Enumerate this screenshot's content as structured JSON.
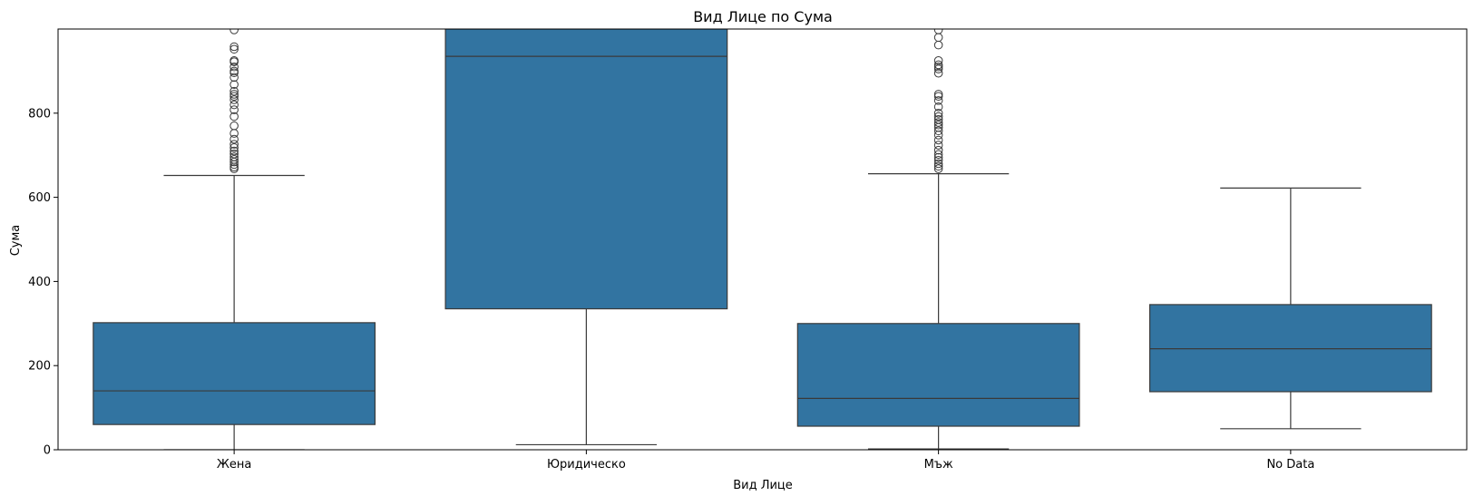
{
  "chart_data": {
    "type": "boxplot",
    "title": "Вид Лице по Сума",
    "xlabel": "Вид Лице",
    "ylabel": "Сума",
    "ylim": [
      0,
      1000
    ],
    "yticks": [
      0,
      200,
      400,
      600,
      800
    ],
    "grid": false,
    "box_color": "#3274a1",
    "line_color": "#3a3a3a",
    "categories": [
      "Жена",
      "Юридическо",
      "Мъж",
      "No Data"
    ],
    "boxes": [
      {
        "category": "Жена",
        "whisker_low": 0,
        "q1": 60,
        "median": 140,
        "q3": 302,
        "whisker_high": 652,
        "outliers": [
          668,
          672,
          678,
          684,
          690,
          696,
          703,
          710,
          718,
          726,
          738,
          752,
          770,
          792,
          808,
          820,
          832,
          840,
          845,
          852,
          868,
          885,
          896,
          900,
          910,
          922,
          925,
          952,
          958,
          998
        ]
      },
      {
        "category": "Юридическо",
        "whisker_low": 12,
        "q1": 335,
        "median": 935,
        "q3": 1000,
        "whisker_high": 1000,
        "outliers": []
      },
      {
        "category": "Мъж",
        "whisker_low": 2,
        "q1": 56,
        "median": 122,
        "q3": 300,
        "whisker_high": 656,
        "outliers": [
          668,
          674,
          680,
          688,
          695,
          702,
          712,
          724,
          736,
          748,
          758,
          766,
          772,
          778,
          785,
          792,
          800,
          815,
          830,
          840,
          845,
          895,
          905,
          910,
          915,
          925,
          962,
          980,
          998
        ]
      },
      {
        "category": "No Data",
        "whisker_low": 50,
        "q1": 138,
        "median": 240,
        "q3": 345,
        "whisker_high": 622,
        "outliers": []
      }
    ]
  }
}
